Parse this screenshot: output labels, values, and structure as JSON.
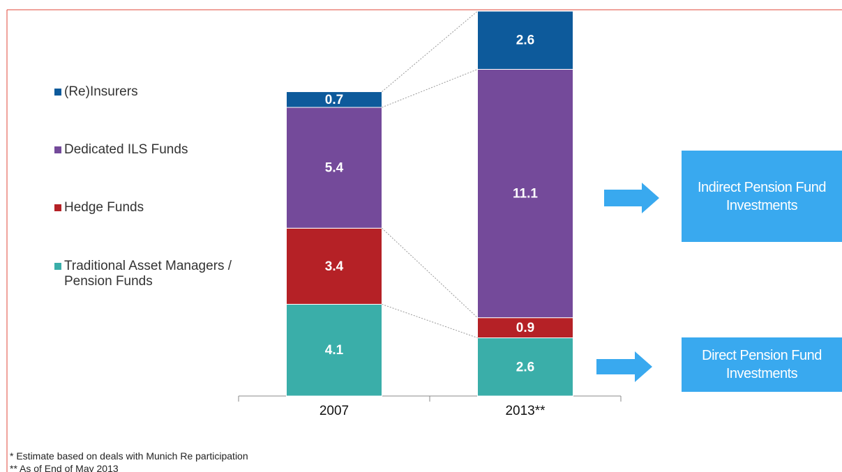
{
  "chart_data": {
    "type": "stacked_bar",
    "categories": [
      "2007",
      "2013**"
    ],
    "series": [
      {
        "name": "Traditional Asset Managers / Pension Funds",
        "color": "#3aaea9",
        "values": [
          4.1,
          2.6
        ]
      },
      {
        "name": "Hedge Funds",
        "color": "#b52126",
        "values": [
          3.4,
          0.9
        ]
      },
      {
        "name": "Dedicated ILS Funds",
        "color": "#744a9a",
        "values": [
          5.4,
          11.1
        ]
      },
      {
        "name": "(Re)Insurers",
        "color": "#0d5a9b",
        "values": [
          0.7,
          2.6
        ]
      }
    ],
    "side_boxes": [
      "Indirect Pension Fund Investments",
      "Direct Pension Fund Investments"
    ],
    "notes": [
      "* Estimate based on deals with Munich Re participation",
      "** As of End of May 2013"
    ]
  }
}
